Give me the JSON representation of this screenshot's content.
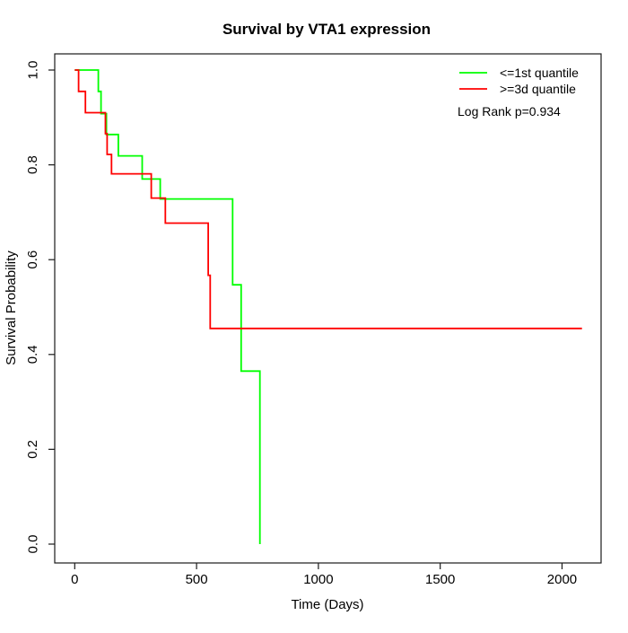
{
  "title": "Survival by VTA1 expression",
  "chart_data": {
    "type": "line",
    "subtype": "kaplan-meier-step",
    "title": "Survival by VTA1 expression",
    "xlabel": "Time (Days)",
    "ylabel": "Survival Probability",
    "xlim": [
      0,
      2082
    ],
    "ylim": [
      0.0,
      1.0
    ],
    "grid": false,
    "legend_position": "top-right",
    "x_axis": {
      "ticks": [
        {
          "value": 0,
          "label": "0"
        },
        {
          "value": 500,
          "label": "500"
        },
        {
          "value": 1000,
          "label": "1000"
        },
        {
          "value": 1500,
          "label": "1500"
        },
        {
          "value": 2000,
          "label": "2000"
        }
      ]
    },
    "y_axis": {
      "ticks": [
        {
          "value": 0.0,
          "label": "0.0"
        },
        {
          "value": 0.2,
          "label": "0.2"
        },
        {
          "value": 0.4,
          "label": "0.4"
        },
        {
          "value": 0.6,
          "label": "0.6"
        },
        {
          "value": 0.8,
          "label": "0.8"
        },
        {
          "value": 1.0,
          "label": "1.0"
        }
      ]
    },
    "series": [
      {
        "name": "<=1st quantile",
        "color": "#00ff00",
        "end_time": 760,
        "points": [
          [
            0,
            1.0
          ],
          [
            97,
            0.955
          ],
          [
            108,
            0.908
          ],
          [
            130,
            0.864
          ],
          [
            179,
            0.819
          ],
          [
            277,
            0.77
          ],
          [
            351,
            0.728
          ],
          [
            648,
            0.547
          ],
          [
            683,
            0.365
          ],
          [
            760,
            0.0
          ]
        ]
      },
      {
        "name": ">=3d quantile",
        "color": "#ff0000",
        "end_time": 2082,
        "points": [
          [
            0,
            1.0
          ],
          [
            16,
            0.955
          ],
          [
            44,
            0.91
          ],
          [
            126,
            0.866
          ],
          [
            133,
            0.822
          ],
          [
            151,
            0.781
          ],
          [
            314,
            0.73
          ],
          [
            372,
            0.677
          ],
          [
            548,
            0.567
          ],
          [
            556,
            0.455
          ]
        ]
      }
    ],
    "annotation": "Log Rank p=0.934"
  },
  "legend": {
    "items": [
      {
        "label": "<=1st quantile",
        "color": "#00ff00"
      },
      {
        "label": ">=3d quantile",
        "color": "#ff0000"
      }
    ],
    "annotation": "Log Rank p=0.934"
  }
}
